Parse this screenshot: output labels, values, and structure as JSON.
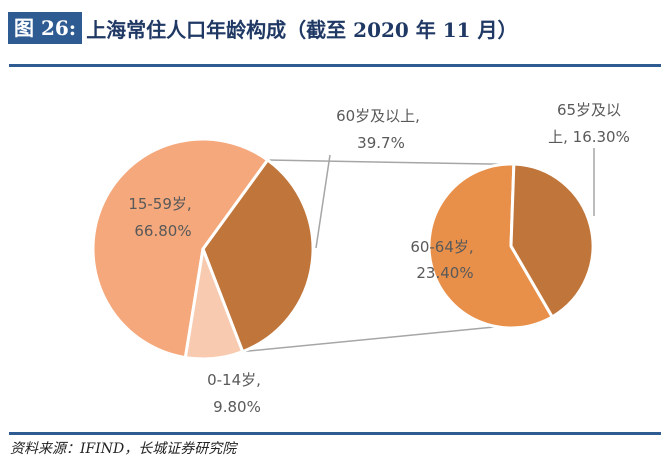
{
  "header": {
    "figure_label": "图 26:",
    "title": "上海常住人口年龄构成（截至 2020 年 11 月）"
  },
  "footer": {
    "source": "资料来源：IFIND，长城证券研究院"
  },
  "colors": {
    "accent": "#2f5b93",
    "slice_15_59": "#f4a87c",
    "slice_60_plus": "#c0753a",
    "slice_0_14": "#f8cbb0",
    "slice_60_64": "#e8904a",
    "slice_65_plus": "#c0753a",
    "connector": "#a6a6a6"
  },
  "chart_data": {
    "type": "pie",
    "subtype": "pie-of-pie",
    "title": "上海常住人口年龄构成（截至 2020 年 11 月）",
    "main_pie": {
      "slices": [
        {
          "name": "15-59岁",
          "value": 66.8,
          "label_line1": "15-59岁,",
          "label_line2": "66.80%"
        },
        {
          "name": "60岁及以上",
          "value": 39.7,
          "label_line1": "60岁及以上,",
          "label_line2": "39.7%"
        },
        {
          "name": "0-14岁",
          "value": 9.8,
          "label_line1": "0-14岁,",
          "label_line2": "9.80%"
        }
      ]
    },
    "secondary_pie": {
      "parent": "60岁及以上",
      "slices": [
        {
          "name": "60-64岁",
          "value": 23.4,
          "label_line1": "60-64岁,",
          "label_line2": "23.40%"
        },
        {
          "name": "65岁及以上",
          "value": 16.3,
          "label_line1": "65岁及以",
          "label_line2": "上, 16.30%"
        }
      ]
    }
  }
}
